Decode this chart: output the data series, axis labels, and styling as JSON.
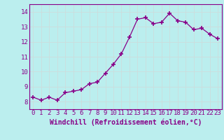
{
  "x": [
    0,
    1,
    2,
    3,
    4,
    5,
    6,
    7,
    8,
    9,
    10,
    11,
    12,
    13,
    14,
    15,
    16,
    17,
    18,
    19,
    20,
    21,
    22,
    23
  ],
  "y": [
    8.3,
    8.1,
    8.3,
    8.1,
    8.6,
    8.7,
    8.8,
    9.2,
    9.3,
    9.9,
    10.5,
    11.2,
    12.3,
    13.5,
    13.6,
    13.2,
    13.3,
    13.9,
    13.4,
    13.3,
    12.8,
    12.9,
    12.5,
    12.2
  ],
  "line_color": "#880088",
  "marker": "+",
  "marker_size": 4,
  "marker_linewidth": 1.2,
  "linewidth": 0.9,
  "xlabel": "Windchill (Refroidissement éolien,°C)",
  "xlabel_fontsize": 7,
  "xtick_labels": [
    "0",
    "1",
    "2",
    "3",
    "4",
    "5",
    "6",
    "7",
    "8",
    "9",
    "10",
    "11",
    "12",
    "13",
    "14",
    "15",
    "16",
    "17",
    "18",
    "19",
    "20",
    "21",
    "22",
    "23"
  ],
  "ylim": [
    7.5,
    14.5
  ],
  "yticks": [
    8,
    9,
    10,
    11,
    12,
    13,
    14
  ],
  "xlim": [
    -0.5,
    23.5
  ],
  "background_color": "#bbeeee",
  "grid_color": "#ccdddd",
  "tick_color": "#880088",
  "tick_fontsize": 6.5,
  "tick_fontfamily": "monospace"
}
